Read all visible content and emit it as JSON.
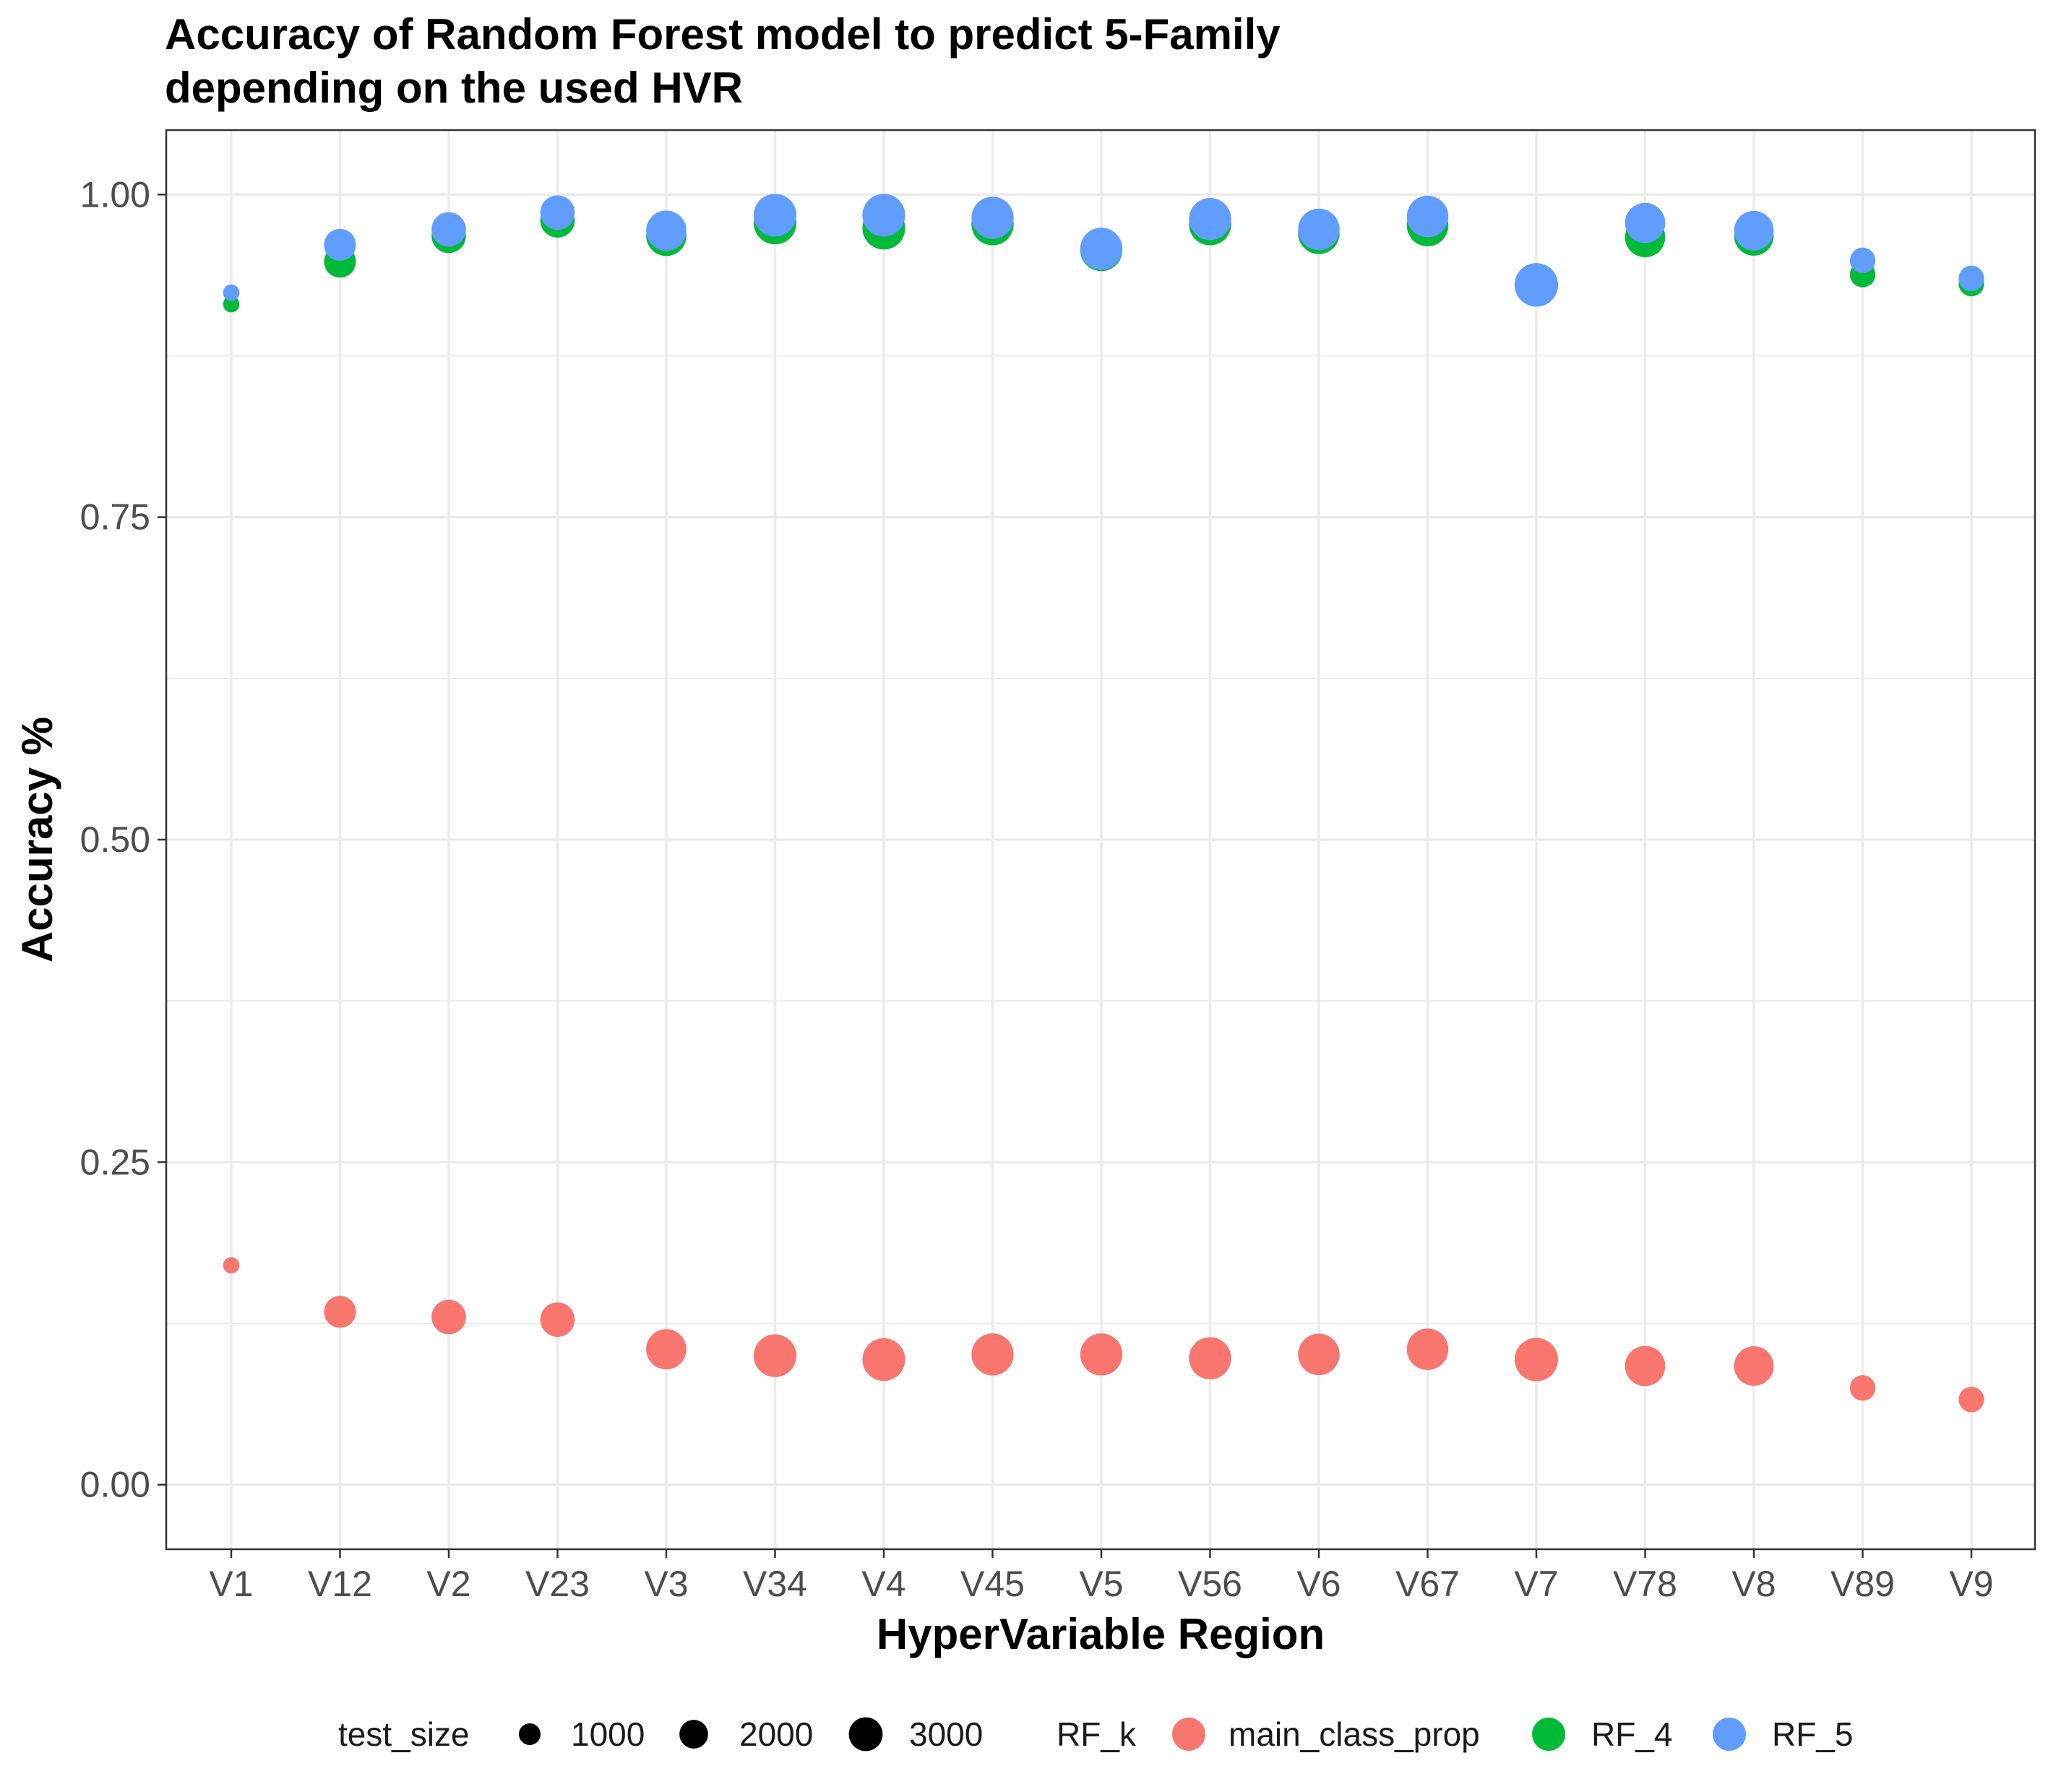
{
  "chart_data": {
    "type": "scatter",
    "title_lines": [
      "Accuracy of Random Forest model to predict 5-Family",
      "depending on the used HVR"
    ],
    "xlabel": "HyperVariable Region",
    "ylabel": "Accuracy %",
    "categories": [
      "V1",
      "V12",
      "V2",
      "V23",
      "V3",
      "V34",
      "V4",
      "V45",
      "V5",
      "V56",
      "V6",
      "V67",
      "V7",
      "V78",
      "V8",
      "V89",
      "V9"
    ],
    "ylim": [
      -0.05,
      1.05
    ],
    "yticks": [
      0.0,
      0.25,
      0.5,
      0.75,
      1.0
    ],
    "ytick_labels": [
      "0.00",
      "0.25",
      "0.50",
      "0.75",
      "1.00"
    ],
    "grid": true,
    "legend_position": "bottom",
    "size_legend": {
      "title": "test_size",
      "entries": [
        {
          "label": "1000",
          "value": 1000
        },
        {
          "label": "2000",
          "value": 2000
        },
        {
          "label": "3000",
          "value": 3000
        }
      ]
    },
    "color_legend_title": "RF_k",
    "test_size": [
      300,
      1400,
      1700,
      1700,
      2500,
      2900,
      2900,
      2800,
      2800,
      2800,
      2700,
      2700,
      3000,
      2500,
      2400,
      800,
      800
    ],
    "series": [
      {
        "name": "main_class_prop",
        "color": "#F8766D",
        "values": [
          0.17,
          0.134,
          0.13,
          0.128,
          0.105,
          0.1,
          0.097,
          0.101,
          0.101,
          0.098,
          0.101,
          0.105,
          0.097,
          0.092,
          0.092,
          0.075,
          0.066
        ]
      },
      {
        "name": "RF_4",
        "color": "#00BA38",
        "values": [
          0.915,
          0.948,
          0.968,
          0.98,
          0.968,
          0.978,
          0.974,
          0.977,
          0.957,
          0.977,
          0.97,
          0.976,
          0.93,
          0.967,
          0.968,
          0.938,
          0.931
        ]
      },
      {
        "name": "RF_5",
        "color": "#619CFF",
        "values": [
          0.924,
          0.961,
          0.973,
          0.986,
          0.972,
          0.984,
          0.984,
          0.982,
          0.958,
          0.981,
          0.973,
          0.983,
          0.93,
          0.978,
          0.972,
          0.949,
          0.935
        ]
      }
    ]
  }
}
